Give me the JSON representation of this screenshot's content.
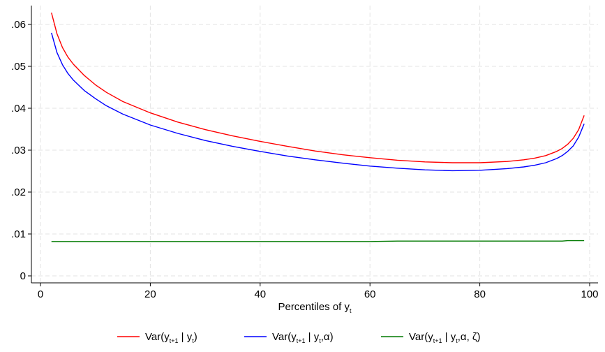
{
  "chart_data": {
    "type": "line",
    "xlabel": "Percentiles of y",
    "xlabel_subscript": "t",
    "ylabel": "",
    "xlim": [
      0,
      100
    ],
    "ylim": [
      0,
      0.065
    ],
    "x_ticks": [
      0,
      20,
      40,
      60,
      80,
      100
    ],
    "x_tick_labels": [
      "0",
      "20",
      "40",
      "60",
      "80",
      "100"
    ],
    "y_ticks": [
      0,
      0.01,
      0.02,
      0.03,
      0.04,
      0.05,
      0.06
    ],
    "y_tick_labels": [
      "0",
      ".01",
      ".02",
      ".03",
      ".04",
      ".05",
      ".06"
    ],
    "grid": true,
    "legend_position": "bottom",
    "x": [
      2,
      3,
      4,
      5,
      6,
      8,
      10,
      12,
      15,
      20,
      25,
      30,
      35,
      40,
      45,
      50,
      55,
      60,
      65,
      70,
      75,
      80,
      85,
      88,
      90,
      92,
      94,
      95,
      96,
      97,
      98,
      99
    ],
    "series": [
      {
        "legend": {
          "base": "Var(y",
          "sub1": "t+1",
          "mid": " | y",
          "sub2": "t",
          "end": ")"
        },
        "color": "#ff0000",
        "values": [
          0.0628,
          0.0578,
          0.0545,
          0.0522,
          0.0505,
          0.0478,
          0.0456,
          0.0438,
          0.0416,
          0.0389,
          0.0367,
          0.0349,
          0.0334,
          0.0321,
          0.0309,
          0.0298,
          0.0289,
          0.0282,
          0.0276,
          0.0272,
          0.027,
          0.027,
          0.0273,
          0.0277,
          0.0281,
          0.0287,
          0.0297,
          0.0304,
          0.0314,
          0.0328,
          0.0349,
          0.0383
        ]
      },
      {
        "legend": {
          "base": "Var(y",
          "sub1": "t+1",
          "mid": " | y",
          "sub2": "t",
          "end": ",α)"
        },
        "color": "#0000ff",
        "values": [
          0.058,
          0.0533,
          0.0504,
          0.0483,
          0.0467,
          0.0442,
          0.0423,
          0.0406,
          0.0386,
          0.036,
          0.034,
          0.0323,
          0.0309,
          0.0297,
          0.0286,
          0.0277,
          0.0269,
          0.0262,
          0.0257,
          0.0253,
          0.0251,
          0.0252,
          0.0256,
          0.026,
          0.0264,
          0.027,
          0.028,
          0.0287,
          0.0297,
          0.031,
          0.0331,
          0.0363
        ]
      },
      {
        "legend": {
          "base": "Var(y",
          "sub1": "t+1",
          "mid": " | y",
          "sub2": "t",
          "end": ",α, ζ)"
        },
        "color": "#007a00",
        "values": [
          0.0082,
          0.0082,
          0.0082,
          0.0082,
          0.0082,
          0.0082,
          0.0082,
          0.0082,
          0.0082,
          0.0082,
          0.0082,
          0.0082,
          0.0082,
          0.0082,
          0.0082,
          0.0082,
          0.0082,
          0.0082,
          0.0083,
          0.0083,
          0.0083,
          0.0083,
          0.0083,
          0.0083,
          0.0083,
          0.0083,
          0.0083,
          0.0083,
          0.0084,
          0.0084,
          0.0084,
          0.0084
        ]
      }
    ]
  }
}
